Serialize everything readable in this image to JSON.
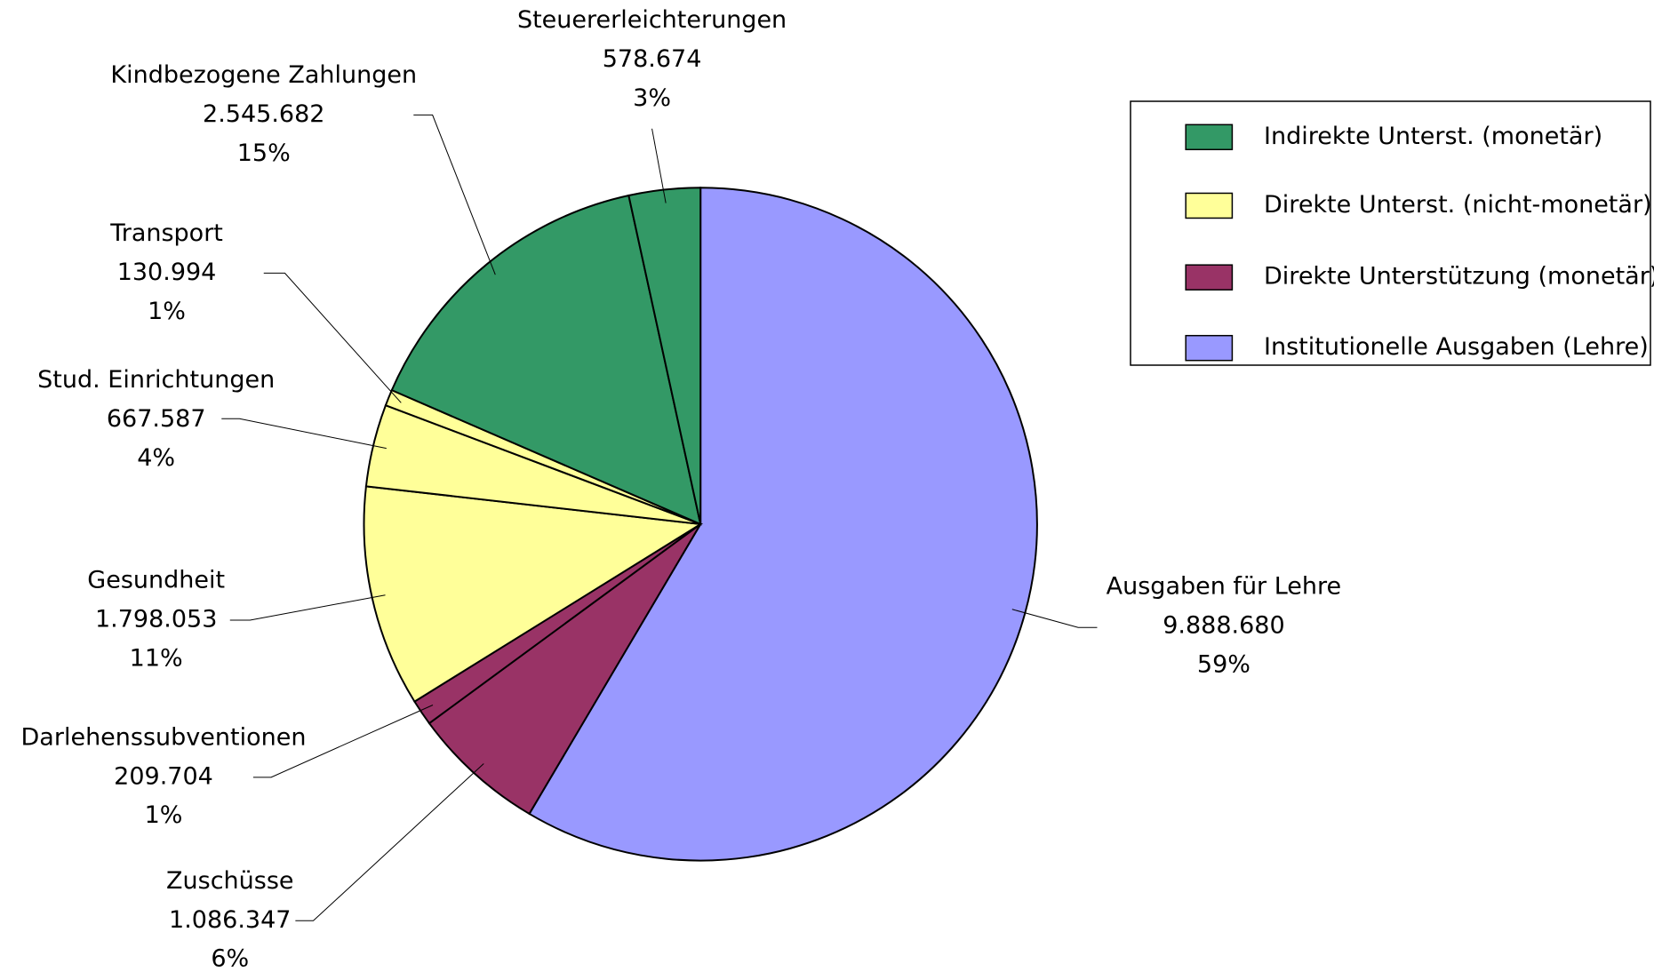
{
  "chart_data": {
    "type": "pie",
    "categories": [
      "Ausgaben für Lehre",
      "Zuschüsse",
      "Darlehenssubventionen",
      "Gesundheit",
      "Stud. Einrichtungen",
      "Transport",
      "Kindbezogene Zahlungen",
      "Steuererleichterungen"
    ],
    "values": [
      9888680,
      1086347,
      209704,
      1798053,
      667587,
      130994,
      2545682,
      578674
    ],
    "value_labels": [
      "9.888.680",
      "1.086.347",
      "209.704",
      "1.798.053",
      "667.587",
      "130.994",
      "2.545.682",
      "578.674"
    ],
    "percent_labels": [
      "59%",
      "6%",
      "1%",
      "11%",
      "4%",
      "1%",
      "15%",
      "3%"
    ],
    "colors": [
      "#9999ff",
      "#993366",
      "#993366",
      "#ffff99",
      "#ffff99",
      "#ffff99",
      "#339966",
      "#339966"
    ],
    "legend": [
      {
        "name": "Indirekte Unterst. (monetär)",
        "color": "#339966"
      },
      {
        "name": "Direkte Unterst. (nicht-monetär)",
        "color": "#ffff99"
      },
      {
        "name": "Direkte Unterstützung (monetär)",
        "color": "#993366"
      },
      {
        "name": "Institutionelle Ausgaben (Lehre)",
        "color": "#9999ff"
      }
    ]
  }
}
